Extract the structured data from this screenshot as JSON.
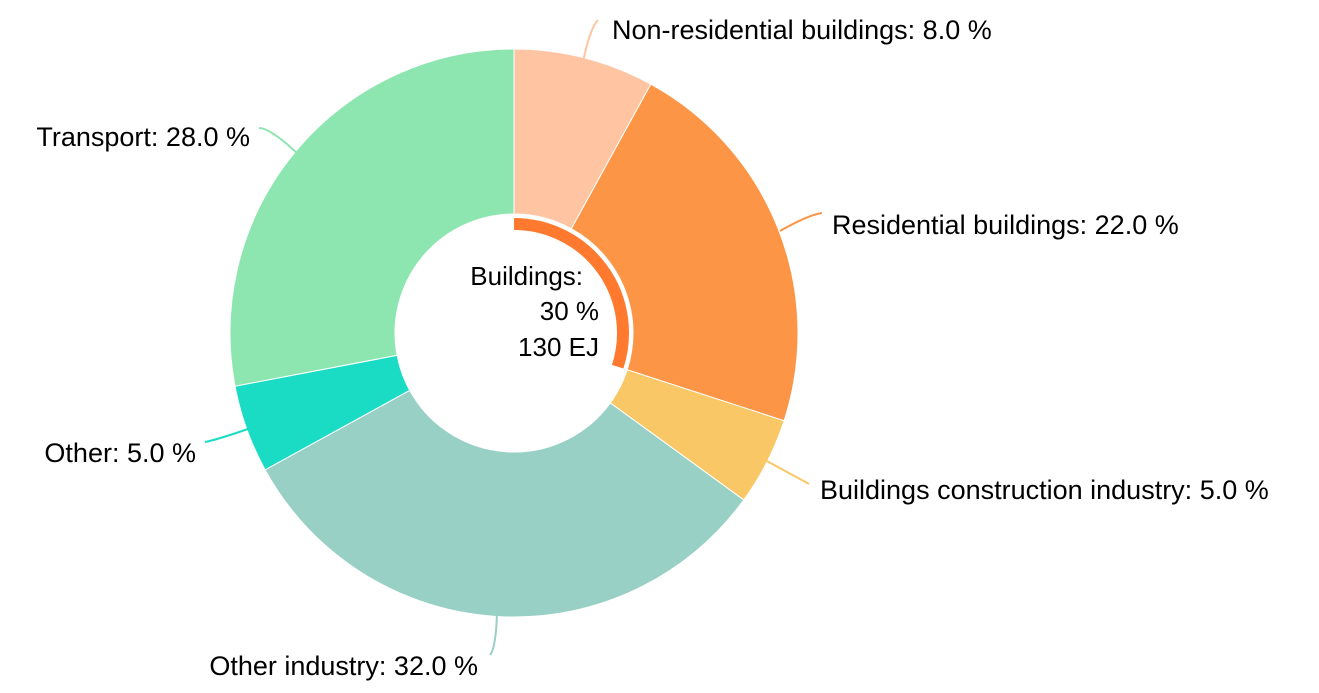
{
  "chart_data": {
    "type": "pie",
    "donut": true,
    "slices": [
      {
        "name": "Non-residential buildings",
        "value": 8.0,
        "color": "#ffc5a3",
        "label": "Non-residential buildings: 8.0 %"
      },
      {
        "name": "Residential buildings",
        "value": 22.0,
        "color": "#fc9545",
        "label": "Residential buildings: 22.0 %"
      },
      {
        "name": "Buildings construction industry",
        "value": 5.0,
        "color": "#f9c766",
        "label": "Buildings construction industry: 5.0 %"
      },
      {
        "name": "Other industry",
        "value": 32.0,
        "color": "#99d0c5",
        "label": "Other industry: 32.0 %"
      },
      {
        "name": "Other",
        "value": 5.0,
        "color": "#1adcc5",
        "label": "Other: 5.0 %"
      },
      {
        "name": "Transport",
        "value": 28.0,
        "color": "#8de6af",
        "label": "Transport: 28.0 %"
      }
    ],
    "center": {
      "line1": "Buildings:",
      "line2": "30 %",
      "line3": "130 EJ",
      "highlight_value": 30,
      "highlight_color": "#ff7a2e"
    }
  }
}
